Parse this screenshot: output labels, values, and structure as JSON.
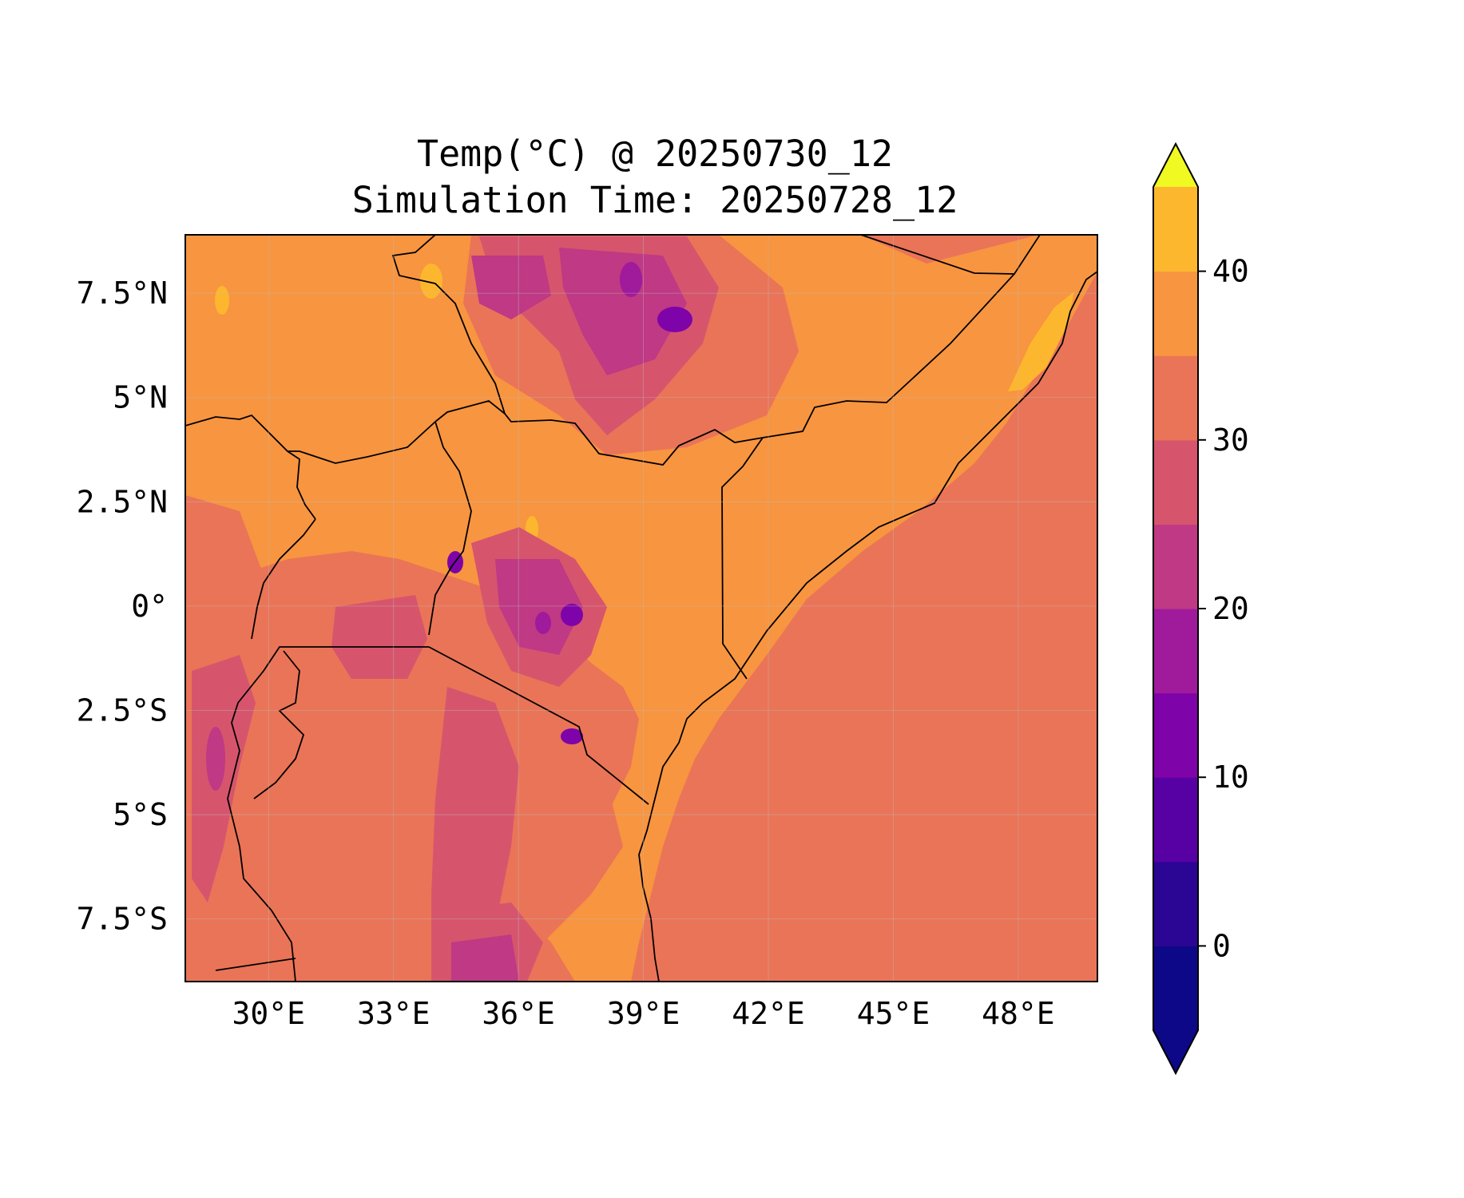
{
  "title": {
    "line1": "Temp(°C) @ 20250730_12",
    "line2": "Simulation Time: 20250728_12"
  },
  "map": {
    "region": "East Africa",
    "lon_range": [
      28.0,
      49.9
    ],
    "lat_range": [
      -9.0,
      8.9
    ],
    "lon_ticks": [
      {
        "value": 30,
        "label": "30°E"
      },
      {
        "value": 33,
        "label": "33°E"
      },
      {
        "value": 36,
        "label": "36°E"
      },
      {
        "value": 39,
        "label": "39°E"
      },
      {
        "value": 42,
        "label": "42°E"
      },
      {
        "value": 45,
        "label": "45°E"
      },
      {
        "value": 48,
        "label": "48°E"
      }
    ],
    "lat_ticks": [
      {
        "value": 7.5,
        "label": "7.5°N"
      },
      {
        "value": 5,
        "label": "5°N"
      },
      {
        "value": 2.5,
        "label": "2.5°N"
      },
      {
        "value": 0,
        "label": "0°"
      },
      {
        "value": -2.5,
        "label": "2.5°S"
      },
      {
        "value": -5,
        "label": "5°S"
      },
      {
        "value": -7.5,
        "label": "7.5°S"
      }
    ],
    "grid": true
  },
  "colorbar": {
    "colormap": "plasma",
    "extend": "both",
    "levels": [
      -5,
      0,
      5,
      10,
      15,
      20,
      25,
      30,
      35,
      40,
      45
    ],
    "colors": [
      "#0d0887",
      "#2b0593",
      "#5701a4",
      "#7e03a8",
      "#a01a9c",
      "#bf3984",
      "#d6556d",
      "#ea7457",
      "#f89540",
      "#fdb72f",
      "#f3e22a"
    ],
    "under_color": "#0d0887",
    "over_color": "#f0f921",
    "tick_labels": [
      {
        "value": 0,
        "label": "0"
      },
      {
        "value": 10,
        "label": "10"
      },
      {
        "value": 20,
        "label": "20"
      },
      {
        "value": 30,
        "label": "30"
      },
      {
        "value": 40,
        "label": "40"
      }
    ]
  }
}
